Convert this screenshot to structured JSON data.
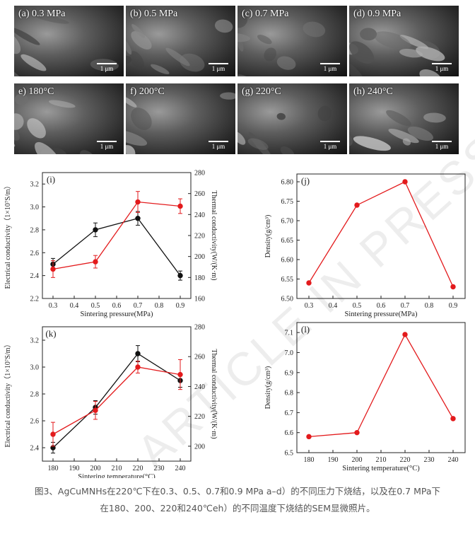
{
  "sem_panels": [
    {
      "label": "(a) 0.3 MPa",
      "scale": "1 μm"
    },
    {
      "label": "(b) 0.5 MPa",
      "scale": "1 μm"
    },
    {
      "label": "(c) 0.7 MPa",
      "scale": "1 μm"
    },
    {
      "label": "(d) 0.9 MPa",
      "scale": "1 μm"
    },
    {
      "label": "e) 180°C",
      "scale": "1 μm"
    },
    {
      "label": "f) 200°C",
      "scale": "1 μm"
    },
    {
      "label": "(g) 220°C",
      "scale": "1 μm"
    },
    {
      "label": "(h) 240°C",
      "scale": "1 μm"
    }
  ],
  "colors": {
    "black_series": "#111111",
    "red_series": "#e31a1c"
  },
  "chart_data": [
    {
      "panel": "(i)",
      "type": "line",
      "xlabel": "Sintering pressure(MPa)",
      "ylabel": "Electrical conductivity（1×10⁷S/m）",
      "ylabel_right": "Thermal conductivity(W/(K·m)",
      "x": [
        0.3,
        0.5,
        0.7,
        0.9
      ],
      "xlim": [
        0.25,
        0.95
      ],
      "xticks": [
        0.3,
        0.4,
        0.5,
        0.6,
        0.7,
        0.8,
        0.9
      ],
      "ylim": [
        2.2,
        3.3
      ],
      "yticks": [
        2.2,
        2.4,
        2.6,
        2.8,
        3.0,
        3.2
      ],
      "ylim_right": [
        160,
        280
      ],
      "yticks_right": [
        160,
        180,
        200,
        220,
        240,
        260,
        280
      ],
      "series": [
        {
          "axis": "left",
          "color": "#111111",
          "values": [
            2.5,
            2.8,
            2.9,
            2.4
          ],
          "err": [
            0.05,
            0.06,
            0.06,
            0.04
          ]
        },
        {
          "axis": "right",
          "color": "#e31a1c",
          "values": [
            188,
            195,
            252,
            248
          ],
          "err": [
            8,
            6,
            10,
            7
          ]
        }
      ]
    },
    {
      "panel": "(j)",
      "type": "line",
      "xlabel": "Sintering pressure(MPa)",
      "ylabel": "Density(g/cm³)",
      "x": [
        0.3,
        0.5,
        0.7,
        0.9
      ],
      "xlim": [
        0.25,
        0.95
      ],
      "xticks": [
        0.3,
        0.4,
        0.5,
        0.6,
        0.7,
        0.8,
        0.9
      ],
      "ylim": [
        6.5,
        6.82
      ],
      "yticks": [
        6.5,
        6.55,
        6.6,
        6.65,
        6.7,
        6.75,
        6.8
      ],
      "series": [
        {
          "axis": "left",
          "color": "#e31a1c",
          "values": [
            6.54,
            6.74,
            6.8,
            6.53
          ]
        }
      ]
    },
    {
      "panel": "(k)",
      "type": "line",
      "xlabel": "Sintering temperature(°C)",
      "ylabel": "Electrical conductivity（1×10⁷S/m）",
      "ylabel_right": "Thermal conductivity(W/(K·m)",
      "x": [
        180,
        200,
        220,
        240
      ],
      "xlim": [
        175,
        245
      ],
      "xticks": [
        180,
        190,
        200,
        210,
        220,
        230,
        240
      ],
      "ylim": [
        2.3,
        3.3
      ],
      "yticks": [
        2.4,
        2.6,
        2.8,
        3.0,
        3.2
      ],
      "ylim_right": [
        190,
        280
      ],
      "yticks_right": [
        200,
        220,
        240,
        260,
        280
      ],
      "series": [
        {
          "axis": "left",
          "color": "#111111",
          "values": [
            2.4,
            2.7,
            3.1,
            2.9
          ],
          "err": [
            0.04,
            0.05,
            0.06,
            0.05
          ]
        },
        {
          "axis": "right",
          "color": "#e31a1c",
          "values": [
            208,
            224,
            253,
            248
          ],
          "err": [
            8,
            6,
            4,
            10
          ]
        }
      ]
    },
    {
      "panel": "(l)",
      "type": "line",
      "xlabel": "Sintering temperature(°C)",
      "ylabel": "Density(g/cm³)",
      "x": [
        180,
        200,
        220,
        240
      ],
      "xlim": [
        175,
        245
      ],
      "xticks": [
        180,
        190,
        200,
        210,
        220,
        230,
        240
      ],
      "ylim": [
        6.5,
        7.15
      ],
      "yticks": [
        6.5,
        6.6,
        6.7,
        6.8,
        6.9,
        7.0,
        7.1
      ],
      "series": [
        {
          "axis": "left",
          "color": "#e31a1c",
          "values": [
            6.58,
            6.6,
            7.09,
            6.67
          ]
        }
      ]
    }
  ],
  "watermark": "ARTICLE IN PRESS",
  "caption": {
    "line1": "图3、AgCuMNHs在220℃下在0.3、0.5、0.7和0.9 MPa a–d）的不同压力下烧结，以及在0.7 MPa下",
    "line2": "在180、200、220和240℃eh）的不同温度下烧结的SEM显微照片。"
  }
}
